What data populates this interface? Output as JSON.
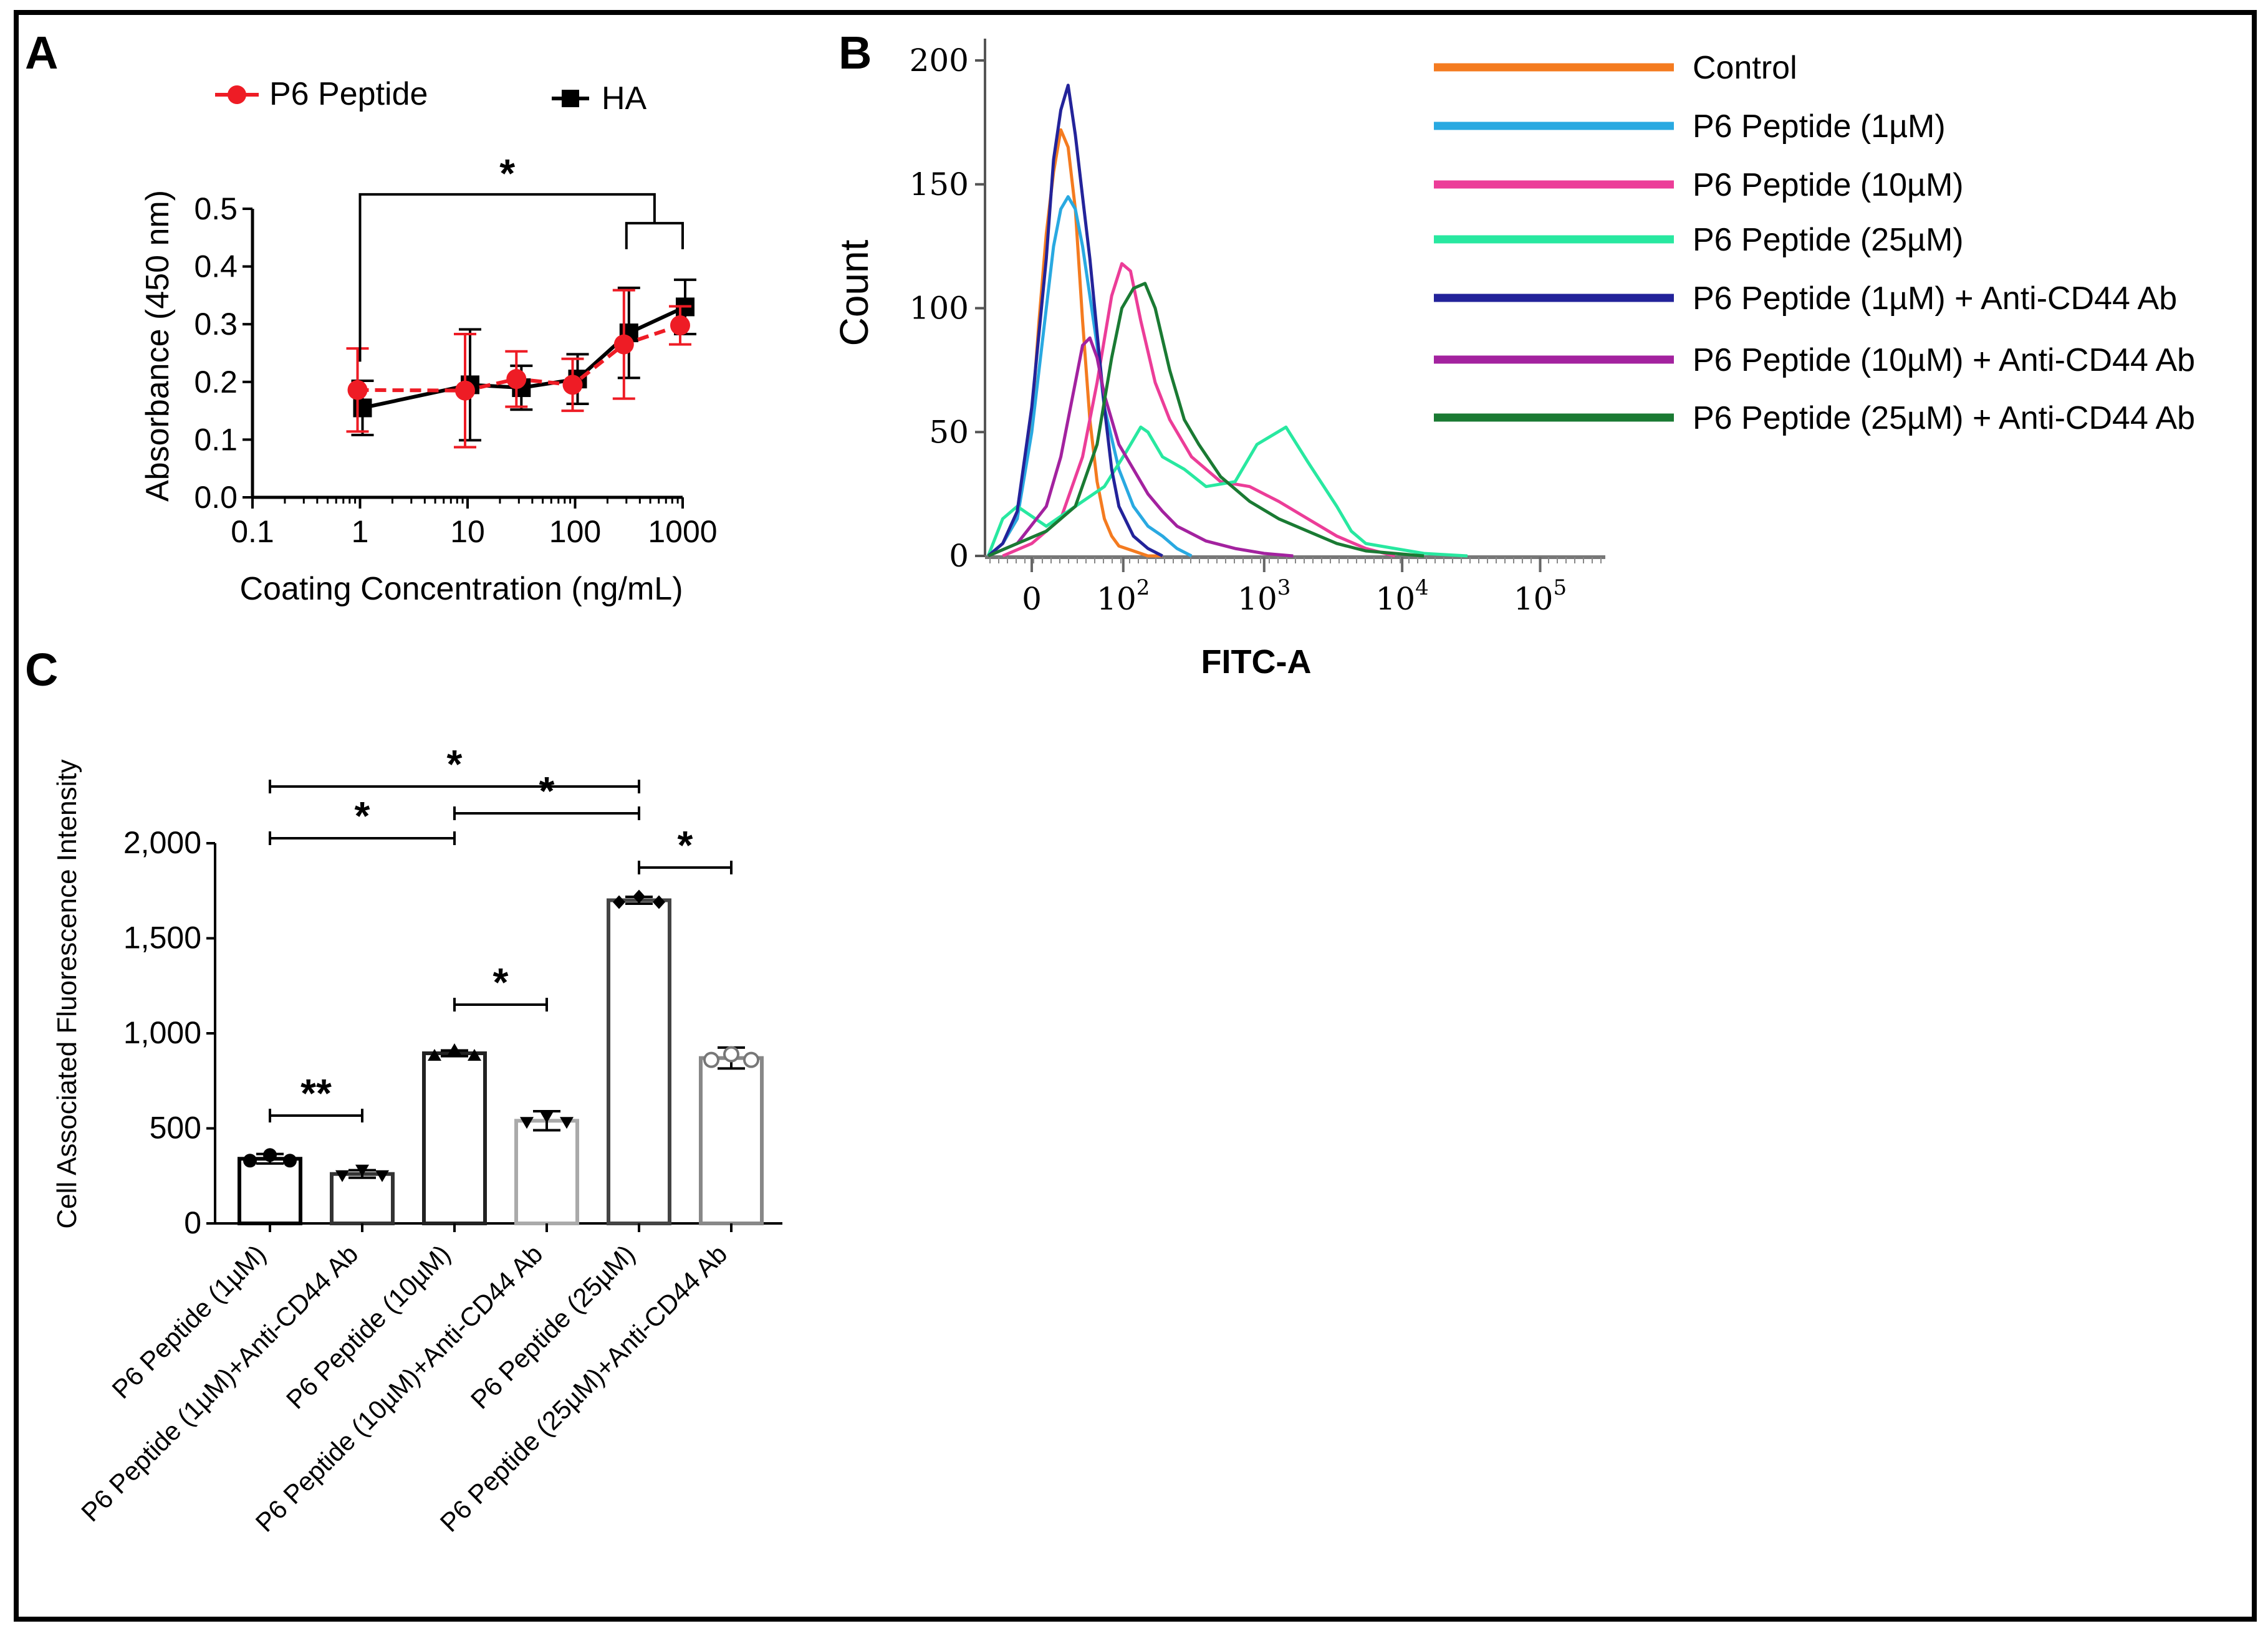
{
  "figure": {
    "panels": {
      "a": "A",
      "b": "B",
      "c": "C"
    }
  },
  "chart_data": [
    {
      "panel": "A",
      "type": "line",
      "x_scale": "log",
      "xlabel": "Coating Concentration (ng/mL)",
      "ylabel": "Absorbance (450 nm)",
      "xlim": [
        0.1,
        1000
      ],
      "ylim": [
        0.0,
        0.5
      ],
      "x_ticks": [
        "0.1",
        "1",
        "10",
        "100",
        "1000"
      ],
      "y_ticks": [
        "0.0",
        "0.1",
        "0.2",
        "0.3",
        "0.4",
        "0.5"
      ],
      "series": [
        {
          "name": "P6 Peptide",
          "color": "#ee1c25",
          "dashed": true,
          "marker": "circle",
          "x": [
            1,
            10,
            30,
            100,
            300,
            1000
          ],
          "y": [
            0.186,
            0.185,
            0.205,
            0.195,
            0.265,
            0.298
          ],
          "err": [
            0.072,
            0.098,
            0.048,
            0.045,
            0.094,
            0.033
          ]
        },
        {
          "name": "HA",
          "color": "#000000",
          "dashed": false,
          "marker": "square",
          "x": [
            1,
            10,
            30,
            100,
            300,
            1000
          ],
          "y": [
            0.155,
            0.195,
            0.19,
            0.205,
            0.285,
            0.33
          ],
          "err": [
            0.047,
            0.096,
            0.038,
            0.043,
            0.078,
            0.047
          ]
        }
      ],
      "significance": [
        {
          "label": "*",
          "from_x": 1,
          "to_group": [
            300,
            1000
          ]
        }
      ]
    },
    {
      "panel": "B",
      "type": "line",
      "xlabel": "FITC-A",
      "ylabel": "Count",
      "ylim": [
        0,
        200
      ],
      "y_ticks": [
        "0",
        "50",
        "100",
        "150",
        "200"
      ],
      "x_ticks": [
        {
          "base": "0",
          "exp": ""
        },
        {
          "base": "10",
          "exp": "2"
        },
        {
          "base": "10",
          "exp": "3"
        },
        {
          "base": "10",
          "exp": "4"
        },
        {
          "base": "10",
          "exp": "5"
        }
      ],
      "x_positions": [
        0,
        0.63,
        1.6,
        2.55,
        3.5
      ],
      "series": [
        {
          "name": "Control",
          "color": "#f47b20",
          "x": [
            -0.3,
            -0.2,
            -0.1,
            0.0,
            0.05,
            0.1,
            0.15,
            0.2,
            0.25,
            0.3,
            0.35,
            0.4,
            0.45,
            0.5,
            0.55,
            0.6,
            0.7,
            0.8,
            0.9
          ],
          "y": [
            0,
            5,
            15,
            55,
            95,
            130,
            155,
            172,
            165,
            140,
            95,
            55,
            30,
            15,
            8,
            4,
            2,
            0,
            0
          ]
        },
        {
          "name": "P6 Peptide (1µM)",
          "color": "#29a9e1",
          "x": [
            -0.3,
            -0.2,
            -0.1,
            0.0,
            0.1,
            0.15,
            0.2,
            0.25,
            0.3,
            0.35,
            0.4,
            0.45,
            0.5,
            0.6,
            0.7,
            0.8,
            0.9,
            1.0,
            1.1
          ],
          "y": [
            0,
            5,
            15,
            50,
            100,
            125,
            140,
            145,
            140,
            125,
            105,
            85,
            60,
            35,
            20,
            12,
            8,
            3,
            0
          ]
        },
        {
          "name": "P6 Peptide (10µM)",
          "color": "#ec3d98",
          "x": [
            -0.2,
            0.0,
            0.2,
            0.35,
            0.45,
            0.55,
            0.62,
            0.68,
            0.75,
            0.85,
            0.95,
            1.1,
            1.3,
            1.5,
            1.7,
            1.9,
            2.1,
            2.3,
            2.5
          ],
          "y": [
            0,
            5,
            15,
            40,
            70,
            105,
            118,
            115,
            95,
            70,
            55,
            40,
            30,
            28,
            22,
            15,
            8,
            3,
            0
          ]
        },
        {
          "name": "P6 Peptide (25µM)",
          "color": "#28e8a0",
          "x": [
            -0.3,
            -0.2,
            -0.1,
            0.1,
            0.3,
            0.5,
            0.65,
            0.75,
            0.8,
            0.9,
            1.05,
            1.2,
            1.4,
            1.55,
            1.75,
            1.9,
            2.1,
            2.2,
            2.3,
            2.5,
            2.7,
            3.0
          ],
          "y": [
            0,
            15,
            20,
            12,
            20,
            28,
            42,
            52,
            50,
            40,
            35,
            28,
            30,
            45,
            52,
            38,
            20,
            10,
            5,
            3,
            1,
            0
          ]
        },
        {
          "name": "P6 Peptide (1µM) + Anti-CD44 Ab",
          "color": "#23239a",
          "x": [
            -0.3,
            -0.2,
            -0.1,
            0.0,
            0.1,
            0.15,
            0.2,
            0.25,
            0.3,
            0.35,
            0.4,
            0.45,
            0.5,
            0.55,
            0.6,
            0.7,
            0.8,
            0.9
          ],
          "y": [
            0,
            5,
            18,
            60,
            120,
            160,
            180,
            190,
            170,
            145,
            120,
            90,
            60,
            35,
            20,
            8,
            3,
            0
          ]
        },
        {
          "name": "P6 Peptide (10µM) + Anti-CD44 Ab",
          "color": "#a3229f",
          "x": [
            -0.3,
            -0.1,
            0.1,
            0.2,
            0.3,
            0.35,
            0.4,
            0.45,
            0.5,
            0.55,
            0.6,
            0.7,
            0.8,
            0.9,
            1.0,
            1.2,
            1.4,
            1.6,
            1.8
          ],
          "y": [
            0,
            5,
            20,
            40,
            70,
            85,
            88,
            80,
            65,
            55,
            45,
            35,
            25,
            18,
            12,
            6,
            3,
            1,
            0
          ]
        },
        {
          "name": "P6 Peptide (25µM) + Anti-CD44 Ab",
          "color": "#1a7a33",
          "x": [
            -0.3,
            -0.1,
            0.1,
            0.3,
            0.45,
            0.55,
            0.62,
            0.7,
            0.78,
            0.85,
            0.95,
            1.05,
            1.15,
            1.3,
            1.5,
            1.7,
            1.9,
            2.1,
            2.3,
            2.5,
            2.7
          ],
          "y": [
            0,
            5,
            10,
            20,
            45,
            80,
            100,
            108,
            110,
            100,
            75,
            55,
            45,
            32,
            22,
            15,
            10,
            5,
            2,
            1,
            0
          ]
        }
      ]
    },
    {
      "panel": "C",
      "type": "bar",
      "ylabel": "Cell Associated Fluorescence Intensity",
      "ylim": [
        0,
        2000
      ],
      "y_ticks": [
        "0",
        "500",
        "1,000",
        "1,500",
        "2,000"
      ],
      "categories": [
        "P6 Peptide (1µM)",
        "P6 Peptide (1µM)+Anti-CD44 Ab",
        "P6 Peptide (10µM)",
        "P6 Peptide (10µM)+Anti-CD44 Ab",
        "P6 Peptide (25µM)",
        "P6 Peptide (25µM)+Anti-CD44 Ab"
      ],
      "values": [
        340,
        260,
        895,
        540,
        1700,
        870
      ],
      "err": [
        25,
        20,
        15,
        50,
        18,
        55
      ],
      "bar_colors": [
        "#000000",
        "#333333",
        "#222222",
        "#aaaaaa",
        "#444444",
        "#888888"
      ],
      "significance": [
        {
          "label": "**",
          "between": [
            0,
            1
          ]
        },
        {
          "label": "*",
          "between": [
            2,
            3
          ]
        },
        {
          "label": "*",
          "between": [
            0,
            2
          ]
        },
        {
          "label": "*",
          "between": [
            2,
            4
          ]
        },
        {
          "label": "*",
          "between": [
            4,
            5
          ]
        },
        {
          "label": "*",
          "between": [
            0,
            4
          ]
        }
      ]
    }
  ]
}
